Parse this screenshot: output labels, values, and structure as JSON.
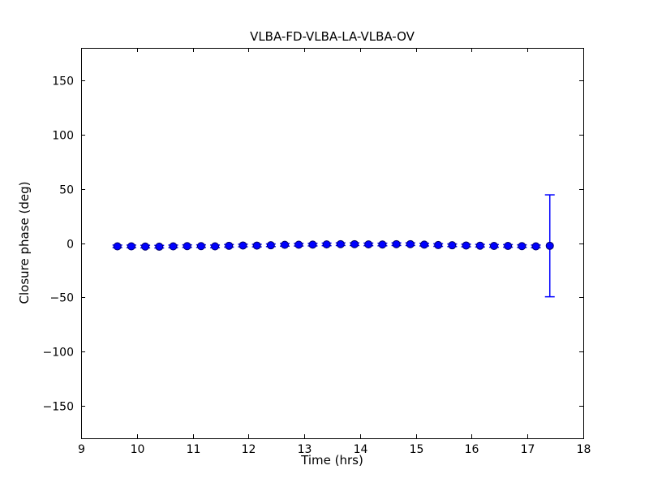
{
  "figure": {
    "background": "#ffffff"
  },
  "chart_data": {
    "type": "scatter",
    "title": "VLBA-FD-VLBA-LA-VLBA-OV",
    "xlabel": "Time (hrs)",
    "ylabel": "Closure phase (deg)",
    "xlim": [
      9,
      18
    ],
    "ylim": [
      -180,
      180
    ],
    "xticks": [
      {
        "v": 9,
        "label": "9"
      },
      {
        "v": 10,
        "label": "10"
      },
      {
        "v": 11,
        "label": "11"
      },
      {
        "v": 12,
        "label": "12"
      },
      {
        "v": 13,
        "label": "13"
      },
      {
        "v": 14,
        "label": "14"
      },
      {
        "v": 15,
        "label": "15"
      },
      {
        "v": 16,
        "label": "16"
      },
      {
        "v": 17,
        "label": "17"
      },
      {
        "v": 18,
        "label": "18"
      }
    ],
    "yticks": [
      {
        "v": 150,
        "label": "150"
      },
      {
        "v": 100,
        "label": "100"
      },
      {
        "v": 50,
        "label": "50"
      },
      {
        "v": 0,
        "label": "0"
      },
      {
        "v": -50,
        "label": "−50"
      },
      {
        "v": -100,
        "label": "−100"
      },
      {
        "v": -150,
        "label": "−150"
      }
    ],
    "grid": false,
    "legend": null,
    "axis_color": "#000000",
    "errorbar_color": "#0000ff",
    "marker": {
      "shape": "circle",
      "fill": "#0000ff",
      "edge": "#000066",
      "diameter": 9
    },
    "series": [
      {
        "name": "closure phase",
        "x": [
          9.65,
          9.9,
          10.15,
          10.4,
          10.65,
          10.9,
          11.15,
          11.4,
          11.65,
          11.9,
          12.15,
          12.4,
          12.65,
          12.9,
          13.15,
          13.4,
          13.65,
          13.9,
          14.15,
          14.4,
          14.65,
          14.9,
          15.15,
          15.4,
          15.65,
          15.9,
          16.15,
          16.4,
          16.65,
          16.9,
          17.15,
          17.4
        ],
        "y": [
          -3,
          -3,
          -3.2,
          -3.3,
          -3,
          -2.8,
          -2.8,
          -3,
          -2.5,
          -2.2,
          -2.3,
          -2,
          -1.6,
          -1.5,
          -1.4,
          -1.2,
          -1,
          -1,
          -1.2,
          -1.3,
          -1,
          -1,
          -1.4,
          -1.8,
          -2,
          -2.2,
          -2.4,
          -2.6,
          -2.6,
          -2.8,
          -3,
          -2.5
        ],
        "yerr": [
          1.2,
          1.2,
          1.2,
          1.2,
          1.2,
          1.2,
          1.2,
          1.2,
          1.2,
          1.2,
          1.2,
          1.2,
          1.2,
          1.2,
          1.2,
          1.2,
          1.2,
          1.2,
          1.2,
          1.2,
          1.2,
          1.2,
          1.2,
          1.2,
          1.2,
          1.2,
          1.2,
          1.2,
          1.2,
          1.2,
          1.2,
          47
        ]
      }
    ]
  }
}
